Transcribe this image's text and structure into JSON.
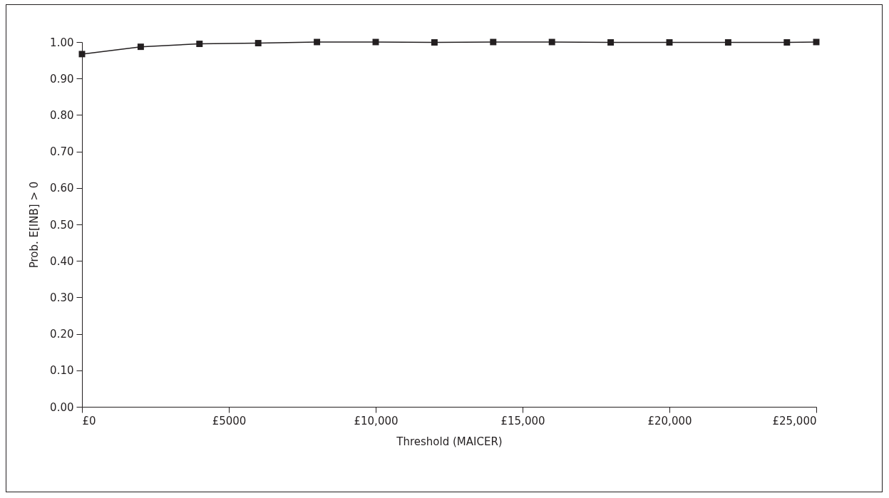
{
  "chart_data": {
    "type": "line",
    "xlabel": "Threshold (MAICER)",
    "ylabel": "Prob. E[INB] > 0",
    "x": [
      0,
      2000,
      4000,
      6000,
      8000,
      10000,
      12000,
      14000,
      16000,
      18000,
      20000,
      22000,
      24000,
      25000
    ],
    "series": [
      {
        "color": "#231f20",
        "values": [
          0.967,
          0.987,
          0.995,
          0.997,
          1.0,
          1.0,
          0.999,
          1.0,
          1.0,
          0.999,
          0.999,
          0.999,
          0.999,
          1.0
        ]
      }
    ],
    "xlim": [
      0,
      25000
    ],
    "xticks": [
      {
        "value": 0,
        "label": "£0"
      },
      {
        "value": 5000,
        "label": "£5000"
      },
      {
        "value": 10000,
        "label": "£10,000"
      },
      {
        "value": 15000,
        "label": "£15,000"
      },
      {
        "value": 20000,
        "label": "£20,000"
      },
      {
        "value": 25000,
        "label": "£25,000"
      }
    ],
    "ylim": [
      0,
      1
    ],
    "yticks": [
      {
        "value": 0,
        "label": "0.00"
      },
      {
        "value": 0.1,
        "label": "0.10"
      },
      {
        "value": 0.2,
        "label": "0.20"
      },
      {
        "value": 0.3,
        "label": "0.30"
      },
      {
        "value": 0.4,
        "label": "0.40"
      },
      {
        "value": 0.5,
        "label": "0.50"
      },
      {
        "value": 0.6,
        "label": "0.60"
      },
      {
        "value": 0.7,
        "label": "0.70"
      },
      {
        "value": 0.8,
        "label": "0.80"
      },
      {
        "value": 0.9,
        "label": "0.90"
      },
      {
        "value": 1.0,
        "label": "1.00"
      }
    ],
    "grid": false,
    "marker": "square",
    "line_style": "solid"
  }
}
